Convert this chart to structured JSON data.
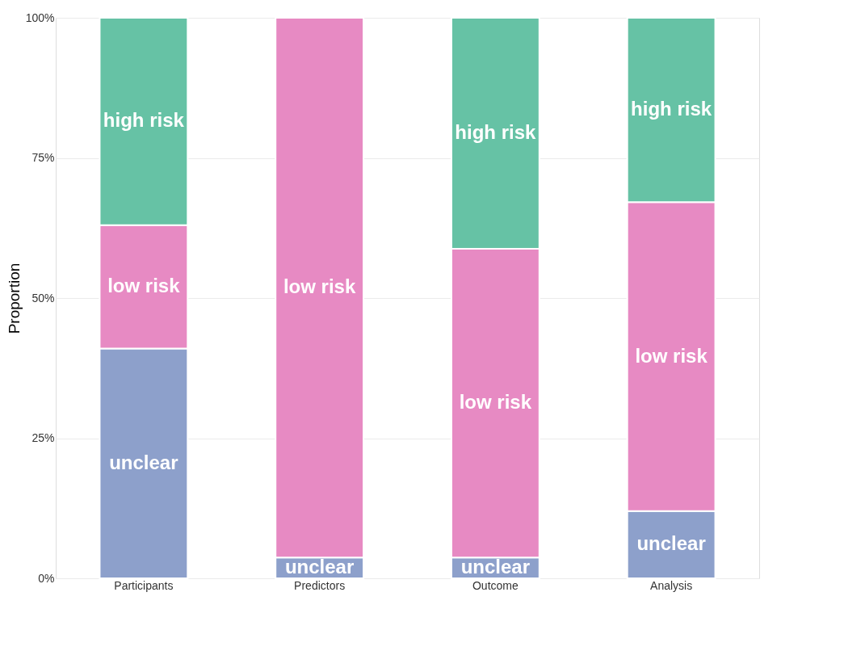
{
  "chart_data": {
    "type": "bar",
    "stacked": true,
    "ylabel": "Proportion",
    "categories": [
      "Participants",
      "Predictors",
      "Outcome",
      "Analysis"
    ],
    "series": [
      {
        "name": "unclear",
        "color": "#8da0cb",
        "values": [
          41,
          3.7,
          3.7,
          12
        ]
      },
      {
        "name": "low risk",
        "color": "#e78ac3",
        "values": [
          22,
          96.3,
          55.1,
          55.1
        ]
      },
      {
        "name": "high risk",
        "color": "#66c2a5",
        "values": [
          37,
          null,
          41.2,
          32.9
        ]
      }
    ],
    "ylim": [
      0,
      100
    ],
    "yticks": [
      {
        "value": 0,
        "label": "0%"
      },
      {
        "value": 25,
        "label": "25%"
      },
      {
        "value": 50,
        "label": "50%"
      },
      {
        "value": 75,
        "label": "75%"
      },
      {
        "value": 100,
        "label": "100%"
      }
    ],
    "grid": true,
    "legend": false
  }
}
